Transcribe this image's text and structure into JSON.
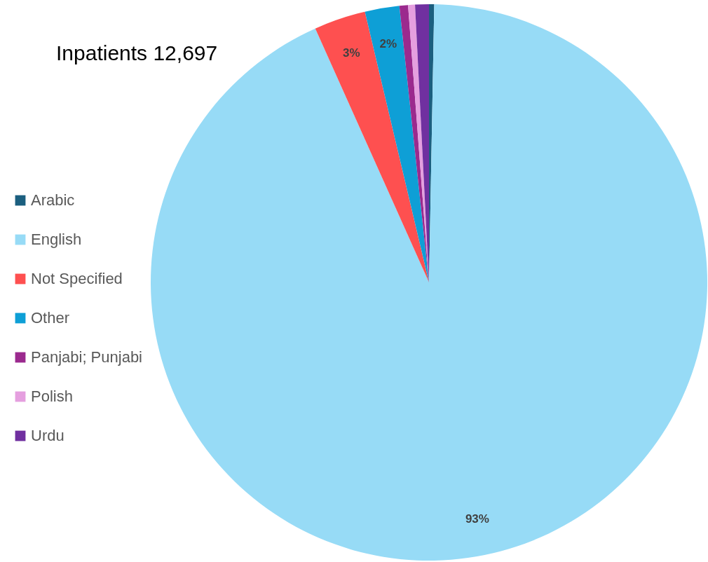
{
  "chart_data": {
    "type": "pie",
    "title": "Inpatients 12,697",
    "categories": [
      "Arabic",
      "English",
      "Not Specified",
      "Other",
      "Panjabi; Punjabi",
      "Polish",
      "Urdu"
    ],
    "values": [
      0.3,
      93,
      3,
      2,
      0.5,
      0.4,
      0.8
    ],
    "colors": [
      "#1b5f7f",
      "#97dbf6",
      "#fe5050",
      "#0e9fd6",
      "#9b2a8e",
      "#e59fdf",
      "#7030a0"
    ],
    "value_labels": [
      null,
      "93%",
      "3%",
      "2%",
      null,
      null,
      null
    ],
    "legend": "left"
  }
}
